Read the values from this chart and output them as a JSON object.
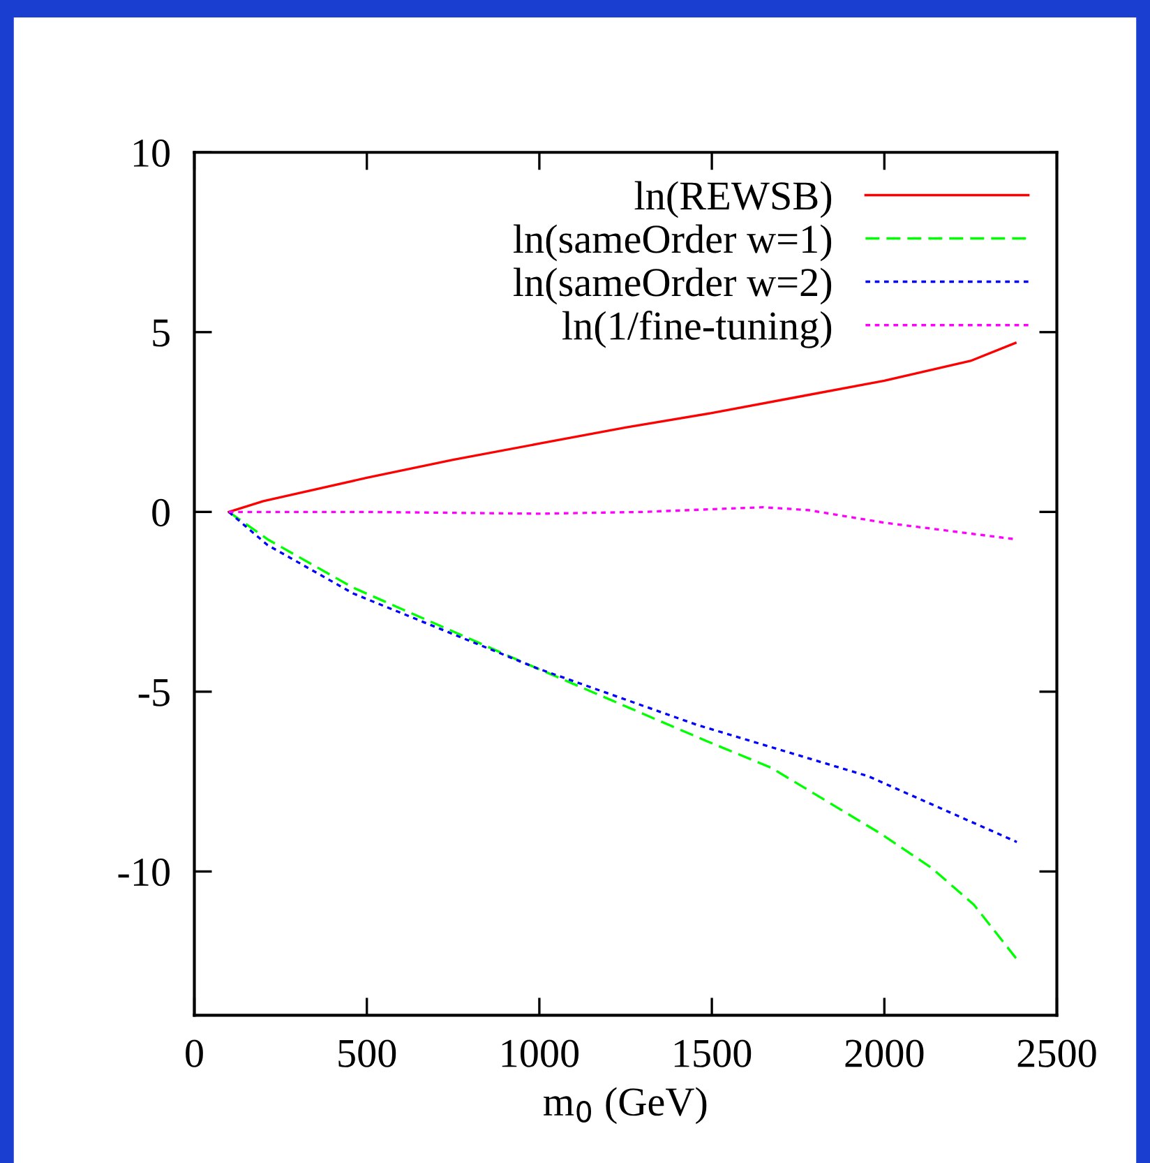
{
  "chart_data": {
    "type": "line",
    "xlabel": "m$_{0}$ (GeV)",
    "xlim": [
      0,
      2500
    ],
    "xticks": [
      0,
      500,
      1000,
      1500,
      2000,
      2500
    ],
    "ylim": [
      -14,
      10
    ],
    "yticks": [
      -10,
      -5,
      0,
      5,
      10
    ],
    "grid": false,
    "legend": "top right",
    "marker": "none",
    "series": [
      {
        "name": "ln(REWSB)",
        "color": "#ff0000",
        "line_style": "solid",
        "x": [
          100,
          200,
          500,
          750,
          1000,
          1250,
          1500,
          1750,
          2000,
          2250,
          2380
        ],
        "values": [
          0,
          0.3,
          0.95,
          1.45,
          1.9,
          2.35,
          2.75,
          3.2,
          3.65,
          4.2,
          4.7
        ]
      },
      {
        "name": "ln(sameOrder w=1)",
        "color": "#00ff00",
        "line_style": "dashed",
        "x": [
          100,
          212,
          461,
          991,
          1489,
          1671,
          1988,
          2137,
          2260,
          2384
        ],
        "values": [
          0,
          -0.76,
          -2.11,
          -4.34,
          -6.39,
          -7.11,
          -8.94,
          -9.9,
          -10.93,
          -12.44
        ]
      },
      {
        "name": "ln(sameOrder w=2)",
        "color": "#0000ff",
        "line_style": "dotted",
        "x": [
          100,
          212,
          461,
          991,
          1456,
          1953,
          2384
        ],
        "values": [
          0,
          -0.92,
          -2.27,
          -4.34,
          -5.92,
          -7.35,
          -9.18
        ]
      },
      {
        "name": "ln(1/fine-tuning)",
        "color": "#ff00ff",
        "line_style": "dotted",
        "x": [
          100,
          500,
          1000,
          1300,
          1650,
          1780,
          2000,
          2380
        ],
        "values": [
          0,
          0,
          -0.05,
          0,
          0.13,
          0.05,
          -0.3,
          -0.76
        ]
      }
    ]
  }
}
